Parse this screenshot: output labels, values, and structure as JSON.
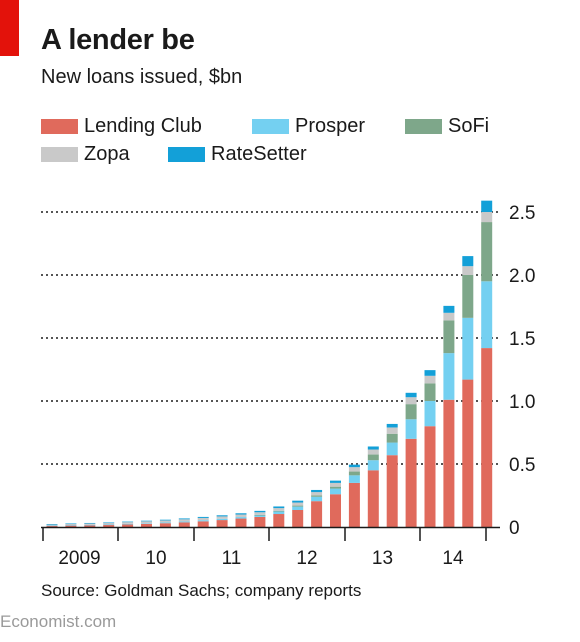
{
  "title": "A lender be",
  "subtitle": "New loans issued, $bn",
  "source": "Source: Goldman Sachs; company reports",
  "brand": "Economist.com",
  "colors": {
    "accent": "#e3120b",
    "Lending Club": "#e06a5c",
    "Prosper": "#74d0f1",
    "SoFi": "#7ea78a",
    "Zopa": "#c9c9c9",
    "RateSetter": "#13a0d8"
  },
  "chart_data": {
    "type": "bar",
    "stacked": true,
    "title": "A lender be",
    "subtitle": "New loans issued, $bn",
    "x_axis_labels": [
      "2009",
      "10",
      "11",
      "12",
      "13",
      "14"
    ],
    "ylim": [
      0,
      2.5
    ],
    "yticks": [
      "0",
      "0.5",
      "1.0",
      "1.5",
      "2.0",
      "2.5"
    ],
    "ytick_values": [
      0,
      0.5,
      1.0,
      1.5,
      2.0,
      2.5
    ],
    "grid": true,
    "legend": "top",
    "series": [
      {
        "name": "Lending Club",
        "values": [
          0.01,
          0.012,
          0.014,
          0.016,
          0.02,
          0.025,
          0.03,
          0.037,
          0.045,
          0.055,
          0.067,
          0.08,
          0.103,
          0.135,
          0.205,
          0.26,
          0.35,
          0.45,
          0.57,
          0.7,
          0.8,
          1.01,
          1.17,
          1.42
        ]
      },
      {
        "name": "Prosper",
        "values": [
          0.002,
          0.003,
          0.003,
          0.004,
          0.005,
          0.005,
          0.006,
          0.007,
          0.009,
          0.01,
          0.012,
          0.014,
          0.02,
          0.027,
          0.035,
          0.045,
          0.06,
          0.08,
          0.1,
          0.155,
          0.2,
          0.37,
          0.49,
          0.53
        ]
      },
      {
        "name": "SoFi",
        "values": [
          0,
          0,
          0,
          0,
          0,
          0,
          0,
          0,
          0,
          0,
          0,
          0.002,
          0.005,
          0.008,
          0.011,
          0.015,
          0.03,
          0.045,
          0.07,
          0.12,
          0.14,
          0.26,
          0.34,
          0.47
        ]
      },
      {
        "name": "Zopa",
        "values": [
          0.01,
          0.011,
          0.012,
          0.013,
          0.014,
          0.015,
          0.016,
          0.017,
          0.018,
          0.019,
          0.02,
          0.021,
          0.022,
          0.024,
          0.026,
          0.03,
          0.035,
          0.04,
          0.05,
          0.055,
          0.06,
          0.06,
          0.07,
          0.08
        ]
      },
      {
        "name": "RateSetter",
        "values": [
          0.001,
          0.002,
          0.003,
          0.003,
          0.004,
          0.005,
          0.006,
          0.007,
          0.008,
          0.009,
          0.01,
          0.011,
          0.013,
          0.015,
          0.017,
          0.018,
          0.02,
          0.024,
          0.028,
          0.035,
          0.045,
          0.055,
          0.08,
          0.09
        ]
      }
    ]
  }
}
